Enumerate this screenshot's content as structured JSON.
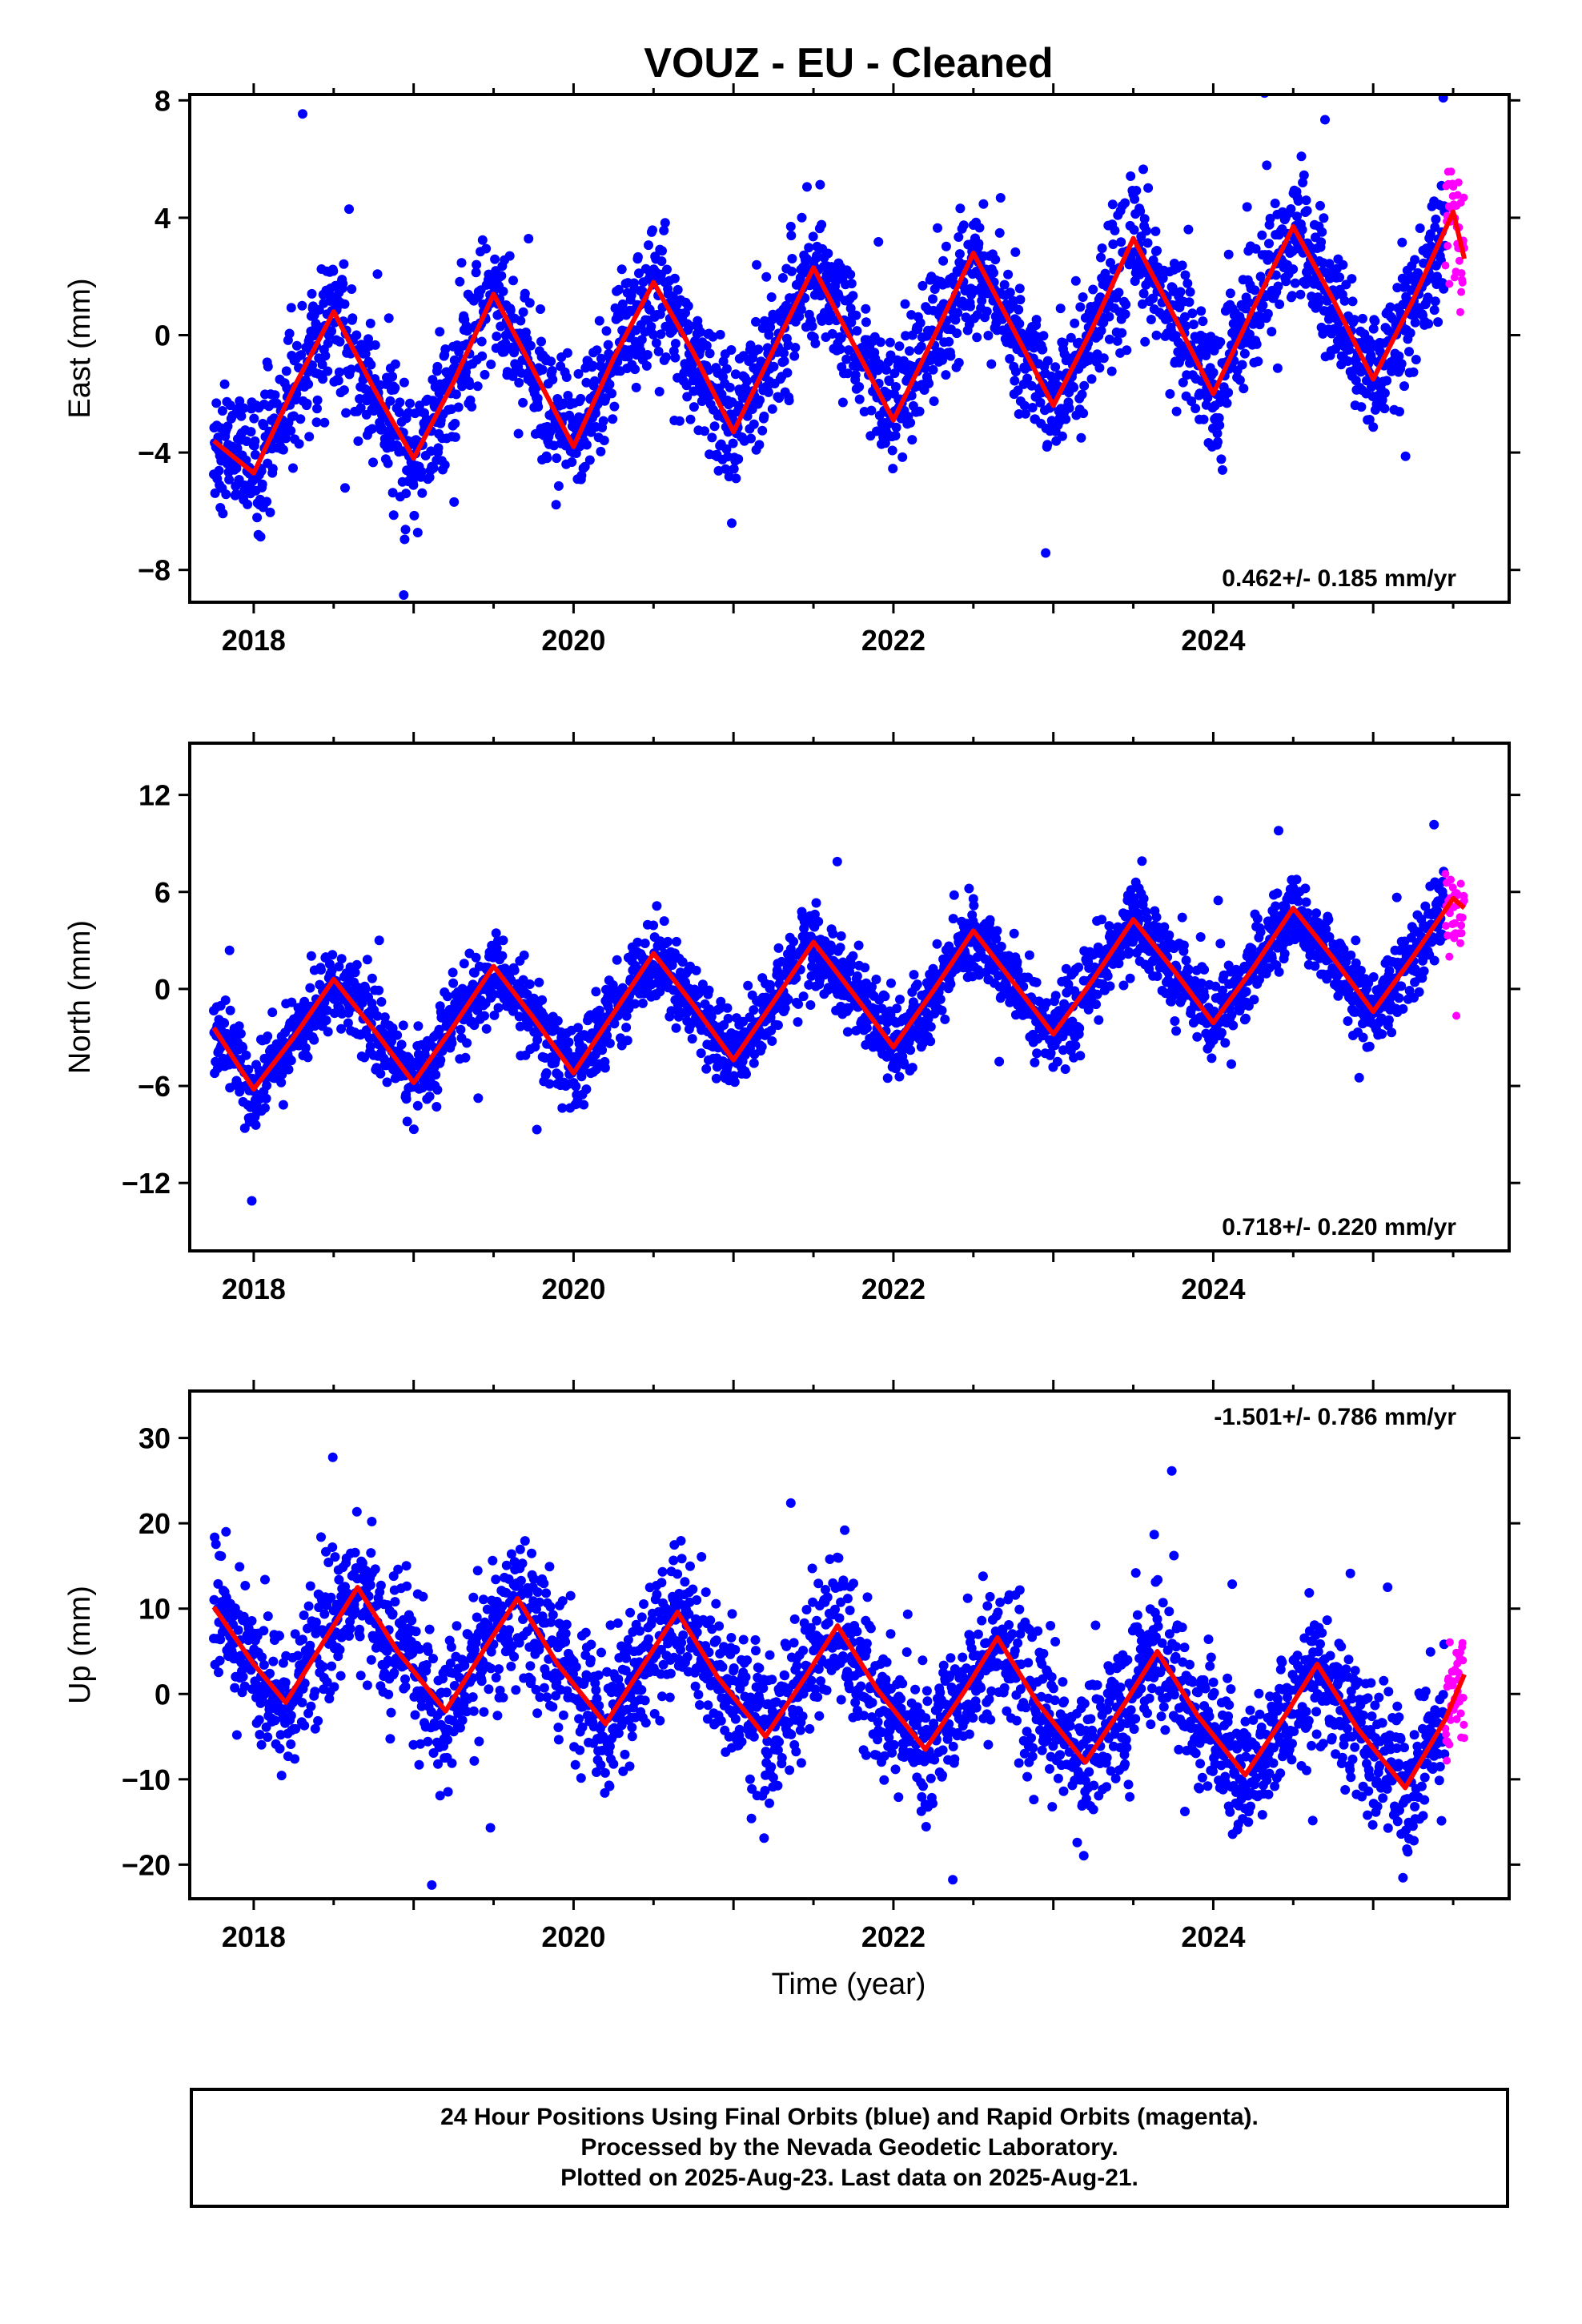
{
  "figure": {
    "title": "VOUZ  - EU - Cleaned",
    "xlabel": "Time (year)",
    "x_ticks": [
      2018,
      2020,
      2022,
      2024
    ],
    "xlim": [
      2017.6,
      2025.85
    ]
  },
  "colors": {
    "final_orbits": "#0000ff",
    "rapid_orbits": "#ff00ff",
    "model_fit": "#ff0000",
    "frame": "#000000"
  },
  "footer": {
    "line1": "24 Hour Positions Using Final Orbits (blue) and Rapid Orbits (magenta).",
    "line2": "Processed by the Nevada Geodetic Laboratory.",
    "line3": "Plotted on 2025-Aug-23. Last data on 2025-Aug-21."
  },
  "chart_data": [
    {
      "type": "scatter",
      "panel": "east",
      "ylabel": "East (mm)",
      "ylim": [
        -9.1,
        8.2
      ],
      "y_ticks": [
        -8,
        -4,
        0,
        4,
        8
      ],
      "rate_text": "0.462+/- 0.185 mm/yr",
      "rate_position": "bottom-right",
      "x_start": 2017.75,
      "x_end": 2025.57,
      "rapid_start": 2025.45,
      "series": [
        {
          "name": "Final Orbits",
          "marker": "dot"
        },
        {
          "name": "Rapid Orbits",
          "marker": "dot"
        }
      ],
      "model_fit": {
        "x": [
          2017.75,
          2018.0,
          2018.25,
          2018.5,
          2018.75,
          2019.0,
          2019.25,
          2019.5,
          2019.75,
          2020.0,
          2020.25,
          2020.5,
          2020.75,
          2021.0,
          2021.25,
          2021.5,
          2021.75,
          2022.0,
          2022.25,
          2022.5,
          2022.75,
          2023.0,
          2023.25,
          2023.5,
          2023.75,
          2024.0,
          2024.25,
          2024.5,
          2024.75,
          2025.0,
          2025.25,
          2025.5,
          2025.57
        ],
        "y": [
          -3.6,
          -4.7,
          -1.8,
          0.8,
          -1.8,
          -4.2,
          -1.6,
          1.4,
          -1.2,
          -3.8,
          -0.8,
          1.8,
          -0.6,
          -3.3,
          -0.5,
          2.3,
          -0.3,
          -2.9,
          -0.1,
          2.8,
          0.2,
          -2.4,
          0.3,
          3.3,
          0.7,
          -2.0,
          0.9,
          3.7,
          1.2,
          -1.5,
          1.2,
          4.2,
          2.6
        ]
      },
      "scatter_spread_mm": 1.1
    },
    {
      "type": "scatter",
      "panel": "north",
      "ylabel": "North (mm)",
      "ylim": [
        -16.2,
        15.2
      ],
      "y_ticks": [
        -12,
        -6,
        0,
        6,
        12
      ],
      "rate_text": "0.718+/- 0.220 mm/yr",
      "rate_position": "bottom-right",
      "x_start": 2017.75,
      "x_end": 2025.57,
      "rapid_start": 2025.45,
      "series": [
        {
          "name": "Final Orbits",
          "marker": "dot"
        },
        {
          "name": "Rapid Orbits",
          "marker": "dot"
        }
      ],
      "model_fit": {
        "x": [
          2017.75,
          2018.0,
          2018.25,
          2018.5,
          2018.75,
          2019.0,
          2019.25,
          2019.5,
          2019.75,
          2020.0,
          2020.25,
          2020.5,
          2020.75,
          2021.0,
          2021.25,
          2021.5,
          2021.75,
          2022.0,
          2022.25,
          2022.5,
          2022.75,
          2023.0,
          2023.25,
          2023.5,
          2023.75,
          2024.0,
          2024.25,
          2024.5,
          2024.75,
          2025.0,
          2025.25,
          2025.5,
          2025.57
        ],
        "y": [
          -2.4,
          -6.2,
          -3.0,
          0.6,
          -2.5,
          -5.8,
          -2.3,
          1.4,
          -1.8,
          -5.2,
          -1.5,
          2.2,
          -1.0,
          -4.4,
          -0.8,
          2.9,
          -0.3,
          -3.6,
          -0.1,
          3.6,
          0.4,
          -2.8,
          0.6,
          4.3,
          1.2,
          -2.1,
          1.3,
          5.0,
          1.9,
          -1.4,
          2.0,
          5.6,
          5.0
        ]
      },
      "scatter_spread_mm": 1.2
    },
    {
      "type": "scatter",
      "panel": "up",
      "ylabel": "Up (mm)",
      "ylim": [
        -24,
        35.5
      ],
      "y_ticks": [
        -20,
        -10,
        0,
        10,
        20,
        30
      ],
      "rate_text": "-1.501+/- 0.786 mm/yr",
      "rate_position": "top-right",
      "x_start": 2017.75,
      "x_end": 2025.57,
      "rapid_start": 2025.45,
      "series": [
        {
          "name": "Final Orbits",
          "marker": "dot"
        },
        {
          "name": "Rapid Orbits",
          "marker": "dot"
        }
      ],
      "model_fit": {
        "x": [
          2017.75,
          2018.0,
          2018.2,
          2018.45,
          2018.65,
          2018.9,
          2019.2,
          2019.45,
          2019.65,
          2019.9,
          2020.2,
          2020.45,
          2020.65,
          2020.9,
          2021.2,
          2021.45,
          2021.65,
          2021.9,
          2022.2,
          2022.45,
          2022.65,
          2022.9,
          2023.2,
          2023.45,
          2023.65,
          2023.9,
          2024.2,
          2024.45,
          2024.65,
          2024.9,
          2025.2,
          2025.45,
          2025.57
        ],
        "y": [
          10.2,
          3.5,
          -1.0,
          6.5,
          12.5,
          5.0,
          -2.0,
          5.5,
          11.2,
          3.5,
          -3.5,
          3.8,
          9.6,
          2.0,
          -5.0,
          2.0,
          8.0,
          0.5,
          -6.5,
          0.5,
          6.6,
          -1.0,
          -8.0,
          -1.0,
          5.0,
          -2.5,
          -9.5,
          -2.5,
          3.5,
          -4.0,
          -11.0,
          -3.0,
          2.3
        ]
      },
      "scatter_spread_mm": 4.0
    }
  ]
}
